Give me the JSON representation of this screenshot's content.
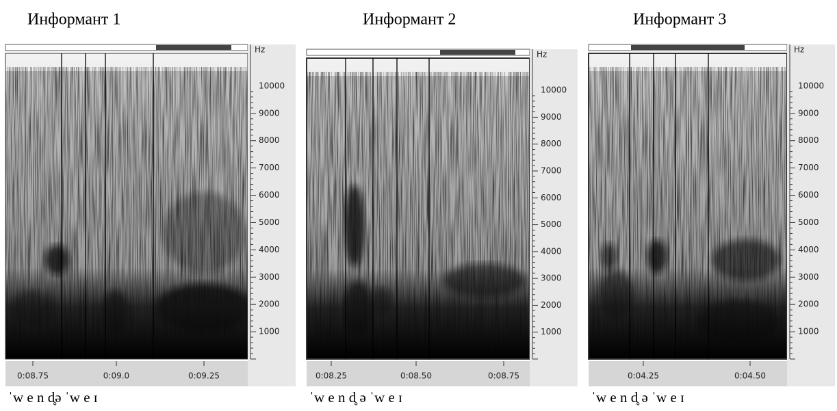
{
  "panels": [
    {
      "title": "Информант 1",
      "unit": "Hz",
      "yticks": [
        10000,
        9000,
        8000,
        7000,
        6000,
        5000,
        4000,
        3000,
        2000,
        1000
      ],
      "xticks": [
        "0:08.75",
        "0:09.0",
        "0:09.25"
      ],
      "transcription": "ˈw e  n  d̥ə  ˈw e   ɪ"
    },
    {
      "title": "Информант 2",
      "unit": "Hz",
      "yticks": [
        10000,
        9000,
        8000,
        7000,
        6000,
        5000,
        4000,
        3000,
        2000,
        1000
      ],
      "xticks": [
        "0:08.25",
        "0:08.50",
        "0:08.75"
      ],
      "transcription": "ˈw e n d̥ ə ˈw e ɪ"
    },
    {
      "title": "Информант 3",
      "unit": "Hz",
      "yticks": [
        10000,
        9000,
        8000,
        7000,
        6000,
        5000,
        4000,
        3000,
        2000,
        1000
      ],
      "xticks": [
        "0:04.25",
        "0:04.50"
      ],
      "transcription": "ˈw e n d̥ ə ˈw e ɪ"
    }
  ]
}
